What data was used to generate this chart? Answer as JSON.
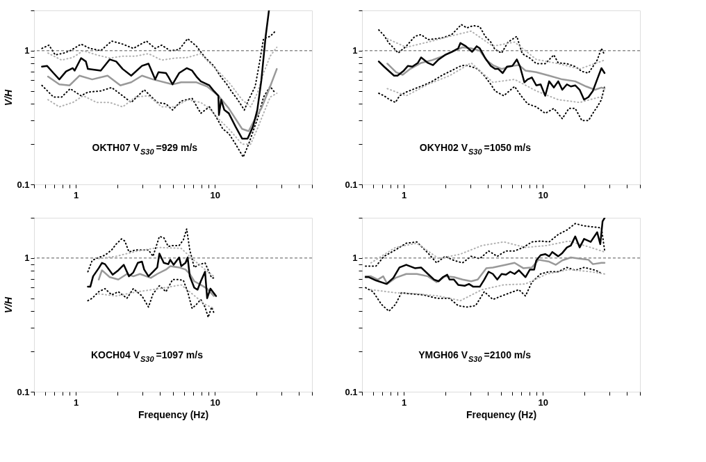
{
  "chart_data": [
    {
      "type": "line",
      "ylabel": "V/H",
      "log": "xy",
      "grid": false,
      "xlim": [
        0.5,
        50
      ],
      "ylim": [
        0.1,
        2
      ],
      "xticks": [
        {
          "value": 0.5,
          "label": null
        },
        {
          "value": 0.6,
          "label": null
        },
        {
          "value": 0.7,
          "label": null
        },
        {
          "value": 0.8,
          "label": null
        },
        {
          "value": 0.9,
          "label": null
        },
        1,
        {
          "value": 2,
          "label": null
        },
        {
          "value": 3,
          "label": null
        },
        {
          "value": 4,
          "label": null
        },
        {
          "value": 5,
          "label": null
        },
        {
          "value": 6,
          "label": null
        },
        {
          "value": 7,
          "label": null
        },
        {
          "value": 8,
          "label": null
        },
        {
          "value": 9,
          "label": null
        },
        10,
        {
          "value": 20,
          "label": null
        },
        {
          "value": 30,
          "label": null
        },
        {
          "value": 40,
          "label": null
        },
        {
          "value": 50,
          "label": null
        }
      ],
      "yticks": [
        0.1,
        {
          "value": 0.2,
          "label": null
        },
        {
          "value": 0.3,
          "label": null
        },
        {
          "value": 0.4,
          "label": null
        },
        {
          "value": 0.5,
          "label": null
        },
        {
          "value": 0.6,
          "label": null
        },
        {
          "value": 0.7,
          "label": null
        },
        {
          "value": 0.8,
          "label": null
        },
        {
          "value": 0.9,
          "label": null
        },
        1,
        {
          "value": 2,
          "label": null
        }
      ],
      "ref_lines": [
        {
          "axis": "y",
          "value": 1,
          "line_style": "dashed",
          "color": "#555555"
        }
      ],
      "annotations": [
        "OKTH07 V$_{S30}$=929 m/s"
      ],
      "series": [
        {
          "color": "#000000",
          "line_style": "dotted",
          "x": [
            0.57,
            0.64,
            0.71,
            0.82,
            0.91,
            1.09,
            1.26,
            1.51,
            1.81,
            2.17,
            2.59,
            3.22,
            3.72,
            4.14,
            4.78,
            5.53,
            6.37,
            7.37,
            8.5,
            9.83,
            10.9,
            12.2,
            13.1,
            14.6,
            16.3,
            17.5,
            19.5,
            20.8,
            22.4,
            25.0,
            27.3
          ],
          "values": [
            1.04,
            1.1,
            0.93,
            0.96,
            1.0,
            1.12,
            1.04,
            1.0,
            1.18,
            1.12,
            1.04,
            1.18,
            1.04,
            1.1,
            1.0,
            1.02,
            1.23,
            1.08,
            0.89,
            0.77,
            0.65,
            0.56,
            0.5,
            0.43,
            0.36,
            0.43,
            0.54,
            0.78,
            1.23,
            1.28,
            1.4
          ]
        },
        {
          "color": "#000000",
          "line_style": "dotted",
          "x": [
            0.57,
            0.69,
            0.79,
            0.91,
            1.09,
            1.22,
            1.51,
            1.81,
            2.17,
            2.5,
            3.1,
            3.85,
            4.45,
            4.96,
            5.72,
            6.86,
            7.92,
            9.13,
            10.2,
            11.4,
            12.6,
            14.1,
            16.0,
            17.5,
            19.1,
            20.5,
            22.4,
            25.0,
            27.3
          ],
          "values": [
            0.55,
            0.45,
            0.45,
            0.52,
            0.46,
            0.49,
            0.5,
            0.53,
            0.46,
            0.41,
            0.51,
            0.41,
            0.4,
            0.36,
            0.42,
            0.44,
            0.34,
            0.38,
            0.32,
            0.26,
            0.24,
            0.2,
            0.16,
            0.2,
            0.26,
            0.32,
            0.45,
            0.54,
            0.48
          ]
        },
        {
          "color": "#b0b0b0",
          "line_style": "dotted",
          "x": [
            0.63,
            0.79,
            0.95,
            1.13,
            1.41,
            1.75,
            2.17,
            2.69,
            3.33,
            4.14,
            5.14,
            6.37,
            7.92,
            9.13,
            10.6,
            12.6,
            15.7,
            18.1,
            20.2,
            22.4,
            25.0,
            27.9
          ],
          "values": [
            0.96,
            0.85,
            0.89,
            1.0,
            0.93,
            0.88,
            0.91,
            0.91,
            0.95,
            0.85,
            0.88,
            0.89,
            0.95,
            0.81,
            0.7,
            0.58,
            0.43,
            0.38,
            0.48,
            0.68,
            0.91,
            1.06
          ]
        },
        {
          "color": "#b0b0b0",
          "line_style": "dotted",
          "x": [
            0.63,
            0.76,
            0.95,
            1.13,
            1.41,
            1.75,
            2.17,
            2.69,
            3.33,
            4.14,
            5.14,
            6.37,
            7.92,
            9.13,
            10.6,
            12.6,
            15.7,
            18.1,
            20.2,
            22.4,
            25.0,
            27.9
          ],
          "values": [
            0.43,
            0.38,
            0.41,
            0.46,
            0.41,
            0.41,
            0.38,
            0.45,
            0.46,
            0.38,
            0.38,
            0.43,
            0.41,
            0.37,
            0.31,
            0.26,
            0.2,
            0.2,
            0.26,
            0.34,
            0.45,
            0.48
          ]
        },
        {
          "color": "#999999",
          "line_style": "solid",
          "x": [
            0.63,
            0.76,
            0.9,
            1.06,
            1.31,
            1.69,
            2.09,
            2.5,
            2.99,
            3.59,
            4.96,
            5.72,
            7.37,
            8.8,
            10.6,
            12.6,
            15.7,
            17.5,
            19.5,
            21.6,
            25.0,
            27.9
          ],
          "values": [
            0.64,
            0.56,
            0.55,
            0.65,
            0.61,
            0.65,
            0.55,
            0.58,
            0.65,
            0.61,
            0.56,
            0.58,
            0.58,
            0.54,
            0.46,
            0.37,
            0.26,
            0.25,
            0.31,
            0.37,
            0.54,
            0.73
          ]
        },
        {
          "color": "#000000",
          "line_style": "solid",
          "x": [
            0.57,
            0.62,
            0.69,
            0.76,
            0.85,
            0.95,
            0.98,
            1.09,
            1.18,
            1.22,
            1.51,
            1.75,
            1.95,
            2.17,
            2.5,
            2.99,
            3.33,
            3.72,
            3.93,
            4.45,
            4.62,
            4.96,
            5.53,
            6.27,
            6.86,
            7.37,
            7.92,
            9.13,
            9.83,
            10.6,
            10.7,
            11.1,
            11.7,
            12.6,
            14.1,
            15.7,
            17.2,
            18.8,
            20.2,
            21.6,
            23.2,
            24.5
          ],
          "values": [
            0.76,
            0.77,
            0.68,
            0.61,
            0.7,
            0.74,
            0.71,
            0.88,
            0.83,
            0.73,
            0.71,
            0.86,
            0.83,
            0.73,
            0.65,
            0.77,
            0.8,
            0.61,
            0.69,
            0.68,
            0.64,
            0.56,
            0.68,
            0.74,
            0.71,
            0.64,
            0.59,
            0.55,
            0.5,
            0.46,
            0.33,
            0.43,
            0.36,
            0.34,
            0.27,
            0.22,
            0.22,
            0.27,
            0.36,
            0.6,
            1.28,
            2.0
          ]
        }
      ]
    },
    {
      "type": "line",
      "log": "xy",
      "grid": false,
      "xlim": [
        0.5,
        50
      ],
      "ylim": [
        0.1,
        2
      ],
      "xticks": [
        {
          "value": 0.5,
          "label": null
        },
        {
          "value": 0.6,
          "label": null
        },
        {
          "value": 0.7,
          "label": null
        },
        {
          "value": 0.8,
          "label": null
        },
        {
          "value": 0.9,
          "label": null
        },
        1,
        {
          "value": 2,
          "label": null
        },
        {
          "value": 3,
          "label": null
        },
        {
          "value": 4,
          "label": null
        },
        {
          "value": 5,
          "label": null
        },
        {
          "value": 6,
          "label": null
        },
        {
          "value": 7,
          "label": null
        },
        {
          "value": 8,
          "label": null
        },
        {
          "value": 9,
          "label": null
        },
        10,
        {
          "value": 20,
          "label": null
        },
        {
          "value": 30,
          "label": null
        },
        {
          "value": 40,
          "label": null
        },
        {
          "value": 50,
          "label": null
        }
      ],
      "yticks": [
        0.1,
        {
          "value": 0.2,
          "label": null
        },
        {
          "value": 0.3,
          "label": null
        },
        {
          "value": 0.4,
          "label": null
        },
        {
          "value": 0.5,
          "label": null
        },
        {
          "value": 0.6,
          "label": null
        },
        {
          "value": 0.7,
          "label": null
        },
        {
          "value": 0.8,
          "label": null
        },
        {
          "value": 0.9,
          "label": null
        },
        1,
        {
          "value": 2,
          "label": null
        }
      ],
      "ref_lines": [
        {
          "axis": "y",
          "value": 1,
          "line_style": "dashed",
          "color": "#555555"
        }
      ],
      "annotations": [
        "OKYH02 V$_{S30}$=1050 m/s"
      ],
      "series": [
        {
          "color": "#000000",
          "line_style": "dotted",
          "x": [
            0.66,
            0.72,
            0.78,
            0.85,
            0.91,
            1.04,
            1.2,
            1.33,
            1.49,
            1.72,
            1.91,
            2.21,
            2.46,
            2.59,
            2.84,
            3.16,
            3.52,
            3.85,
            4.22,
            4.53,
            5.05,
            5.62,
            6.5,
            7.1,
            8.07,
            8.97,
            10.4,
            12.0,
            12.9,
            14.9,
            17.1,
            19.1,
            21.3,
            22.9,
            24.6,
            26.4,
            27.8
          ],
          "values": [
            1.43,
            1.3,
            1.14,
            1.04,
            0.96,
            1.08,
            1.28,
            1.32,
            1.21,
            1.23,
            1.25,
            1.32,
            1.48,
            1.57,
            1.48,
            1.54,
            1.51,
            1.28,
            1.16,
            1.02,
            0.96,
            1.16,
            1.28,
            0.95,
            0.88,
            0.8,
            0.8,
            0.93,
            0.81,
            0.8,
            0.76,
            0.7,
            0.68,
            0.76,
            0.85,
            1.04,
            0.93
          ]
        },
        {
          "color": "#000000",
          "line_style": "dotted",
          "x": [
            0.66,
            0.72,
            0.79,
            0.87,
            0.93,
            1.04,
            1.2,
            1.38,
            1.6,
            1.91,
            2.21,
            2.5,
            2.74,
            3.05,
            3.4,
            3.79,
            4.22,
            4.53,
            5.23,
            6.26,
            6.97,
            7.77,
            8.97,
            10.4,
            12.0,
            13.8,
            15.4,
            17.1,
            19.1,
            21.3,
            22.9,
            24.6,
            26.4,
            27.8
          ],
          "values": [
            0.48,
            0.46,
            0.43,
            0.41,
            0.46,
            0.49,
            0.52,
            0.55,
            0.59,
            0.66,
            0.71,
            0.76,
            0.78,
            0.76,
            0.73,
            0.65,
            0.56,
            0.5,
            0.46,
            0.54,
            0.46,
            0.4,
            0.38,
            0.34,
            0.37,
            0.31,
            0.37,
            0.37,
            0.3,
            0.3,
            0.34,
            0.38,
            0.43,
            0.54
          ]
        },
        {
          "color": "#b0b0b0",
          "line_style": "dotted",
          "x": [
            0.76,
            1.04,
            1.49,
            2.13,
            3.05,
            4.37,
            6.26,
            8.97,
            12.9,
            18.4,
            27.8
          ],
          "values": [
            1.23,
            1.06,
            1.16,
            1.28,
            1.4,
            1.08,
            1.16,
            0.86,
            0.8,
            0.73,
            0.85
          ]
        },
        {
          "color": "#b0b0b0",
          "line_style": "dotted",
          "x": [
            0.76,
            1.04,
            1.49,
            2.13,
            3.05,
            4.37,
            6.26,
            8.97,
            12.9,
            18.4,
            27.8
          ],
          "values": [
            0.52,
            0.46,
            0.56,
            0.65,
            0.81,
            0.58,
            0.61,
            0.5,
            0.43,
            0.41,
            0.46
          ]
        },
        {
          "color": "#999999",
          "line_style": "solid",
          "x": [
            0.76,
            0.88,
            0.98,
            1.11,
            1.33,
            1.6,
            1.91,
            2.21,
            2.64,
            3.05,
            3.52,
            3.92,
            4.37,
            5.05,
            6.04,
            6.72,
            7.5,
            8.97,
            11.1,
            13.8,
            17.1,
            20.5,
            23.7,
            26.4,
            27.8
          ],
          "values": [
            0.8,
            0.69,
            0.66,
            0.73,
            0.81,
            0.85,
            0.91,
            0.98,
            1.06,
            1.04,
            1.0,
            0.85,
            0.78,
            0.73,
            0.77,
            0.78,
            0.71,
            0.69,
            0.65,
            0.61,
            0.59,
            0.54,
            0.51,
            0.53,
            0.52
          ]
        },
        {
          "color": "#000000",
          "line_style": "solid",
          "x": [
            0.66,
            0.72,
            0.85,
            0.9,
            1.0,
            1.07,
            1.15,
            1.26,
            1.33,
            1.49,
            1.62,
            1.78,
            1.98,
            2.21,
            2.46,
            2.55,
            2.79,
            3.1,
            3.34,
            3.52,
            3.85,
            4.22,
            4.53,
            4.78,
            5.14,
            5.52,
            6.04,
            6.5,
            6.85,
            7.37,
            7.77,
            8.34,
            8.97,
            9.64,
            10.4,
            11.1,
            12.0,
            12.9,
            13.8,
            14.9,
            15.9,
            17.1,
            18.4,
            19.8,
            21.3,
            22.9,
            24.6,
            26.4,
            27.8
          ],
          "values": [
            0.83,
            0.76,
            0.65,
            0.65,
            0.71,
            0.77,
            0.76,
            0.81,
            0.89,
            0.81,
            0.78,
            0.86,
            0.93,
            0.98,
            1.04,
            1.14,
            1.08,
            0.98,
            1.08,
            1.04,
            0.88,
            0.77,
            0.73,
            0.73,
            0.68,
            0.76,
            0.77,
            0.86,
            0.76,
            0.58,
            0.61,
            0.63,
            0.55,
            0.56,
            0.46,
            0.59,
            0.53,
            0.59,
            0.51,
            0.56,
            0.54,
            0.55,
            0.51,
            0.43,
            0.45,
            0.5,
            0.61,
            0.74,
            0.68
          ]
        }
      ]
    },
    {
      "type": "line",
      "xlabel": "Frequency (Hz)",
      "ylabel": "V/H",
      "log": "xy",
      "grid": false,
      "xlim": [
        0.5,
        50
      ],
      "ylim": [
        0.1,
        2
      ],
      "xticks": [
        {
          "value": 0.5,
          "label": null
        },
        {
          "value": 0.6,
          "label": null
        },
        {
          "value": 0.7,
          "label": null
        },
        {
          "value": 0.8,
          "label": null
        },
        {
          "value": 0.9,
          "label": null
        },
        1,
        {
          "value": 2,
          "label": null
        },
        {
          "value": 3,
          "label": null
        },
        {
          "value": 4,
          "label": null
        },
        {
          "value": 5,
          "label": null
        },
        {
          "value": 6,
          "label": null
        },
        {
          "value": 7,
          "label": null
        },
        {
          "value": 8,
          "label": null
        },
        {
          "value": 9,
          "label": null
        },
        10,
        {
          "value": 20,
          "label": null
        },
        {
          "value": 30,
          "label": null
        },
        {
          "value": 40,
          "label": null
        },
        {
          "value": 50,
          "label": null
        }
      ],
      "yticks": [
        0.1,
        {
          "value": 0.2,
          "label": null
        },
        {
          "value": 0.3,
          "label": null
        },
        {
          "value": 0.4,
          "label": null
        },
        {
          "value": 0.5,
          "label": null
        },
        {
          "value": 0.6,
          "label": null
        },
        {
          "value": 0.7,
          "label": null
        },
        {
          "value": 0.8,
          "label": null
        },
        {
          "value": 0.9,
          "label": null
        },
        1,
        {
          "value": 2,
          "label": null
        }
      ],
      "ref_lines": [
        {
          "axis": "y",
          "value": 1,
          "line_style": "dashed",
          "color": "#555555"
        }
      ],
      "annotations": [
        "KOCH04 V$_{S30}$=1097 m/s"
      ],
      "series": [
        {
          "color": "#000000",
          "line_style": "dotted",
          "x": [
            1.22,
            1.31,
            1.46,
            1.62,
            1.81,
            1.95,
            2.13,
            2.25,
            2.41,
            2.69,
            2.99,
            3.33,
            3.59,
            3.99,
            4.29,
            4.62,
            4.96,
            5.53,
            5.94,
            6.27,
            6.6,
            7.11,
            7.64,
            8.5,
            9.48,
            9.83
          ],
          "values": [
            0.79,
            0.96,
            1.01,
            1.05,
            1.15,
            1.27,
            1.39,
            1.34,
            1.11,
            1.15,
            1.15,
            1.15,
            1.03,
            1.45,
            1.42,
            1.22,
            1.24,
            1.24,
            1.37,
            1.65,
            1.15,
            0.85,
            0.89,
            0.92,
            0.71,
            0.71
          ]
        },
        {
          "color": "#000000",
          "line_style": "dotted",
          "x": [
            1.22,
            1.31,
            1.46,
            1.62,
            1.81,
            2.02,
            2.33,
            2.59,
            2.99,
            3.33,
            3.59,
            3.99,
            4.45,
            4.96,
            5.53,
            5.94,
            6.37,
            6.86,
            7.37,
            7.92,
            8.5,
            8.95,
            9.48,
            9.83
          ],
          "values": [
            0.48,
            0.5,
            0.56,
            0.59,
            0.53,
            0.56,
            0.5,
            0.59,
            0.52,
            0.43,
            0.54,
            0.62,
            0.56,
            0.69,
            0.69,
            0.68,
            0.56,
            0.42,
            0.45,
            0.49,
            0.43,
            0.36,
            0.43,
            0.39
          ]
        },
        {
          "color": "#b0b0b0",
          "line_style": "dotted",
          "x": [
            1.46,
            1.95,
            2.79,
            3.99,
            5.73,
            6.86,
            8.5,
            9.83
          ],
          "values": [
            0.99,
            1.03,
            1.13,
            1.2,
            1.18,
            0.99,
            0.82,
            0.73
          ]
        },
        {
          "color": "#b0b0b0",
          "line_style": "dotted",
          "x": [
            1.46,
            1.95,
            2.79,
            3.99,
            5.73,
            6.86,
            8.5,
            9.83
          ],
          "values": [
            0.54,
            0.52,
            0.56,
            0.59,
            0.63,
            0.54,
            0.45,
            0.42
          ]
        },
        {
          "color": "#999999",
          "line_style": "solid",
          "x": [
            1.46,
            1.54,
            1.75,
            2.02,
            2.33,
            2.59,
            2.89,
            3.46,
            3.85,
            4.45,
            4.78,
            5.53,
            6.15,
            6.6,
            7.11,
            7.92,
            8.8,
            9.83
          ],
          "values": [
            0.69,
            0.81,
            0.72,
            0.69,
            0.76,
            0.73,
            0.76,
            0.71,
            0.76,
            0.82,
            0.87,
            0.85,
            0.82,
            0.76,
            0.67,
            0.63,
            0.59,
            0.52
          ]
        },
        {
          "color": "#000000",
          "line_style": "solid",
          "x": [
            1.22,
            1.27,
            1.33,
            1.46,
            1.54,
            1.62,
            1.84,
            2.02,
            2.21,
            2.41,
            2.59,
            2.79,
            2.99,
            3.1,
            3.33,
            3.59,
            3.85,
            3.99,
            4.29,
            4.62,
            4.78,
            5.05,
            5.53,
            5.73,
            6.15,
            6.37,
            6.6,
            7.11,
            7.51,
            7.92,
            8.5,
            8.8,
            9.29,
            10.2
          ],
          "values": [
            0.61,
            0.61,
            0.73,
            0.84,
            0.92,
            0.9,
            0.75,
            0.81,
            0.89,
            0.73,
            0.78,
            0.92,
            0.94,
            0.82,
            0.73,
            0.79,
            0.85,
            1.08,
            0.92,
            0.9,
            0.97,
            0.89,
            1.01,
            0.87,
            0.92,
            1.01,
            0.73,
            0.6,
            0.58,
            0.67,
            0.79,
            0.5,
            0.59,
            0.52
          ]
        }
      ]
    },
    {
      "type": "line",
      "xlabel": "Frequency (Hz)",
      "log": "xy",
      "grid": false,
      "xlim": [
        0.5,
        50
      ],
      "ylim": [
        0.1,
        2
      ],
      "xticks": [
        {
          "value": 0.5,
          "label": null
        },
        {
          "value": 0.6,
          "label": null
        },
        {
          "value": 0.7,
          "label": null
        },
        {
          "value": 0.8,
          "label": null
        },
        {
          "value": 0.9,
          "label": null
        },
        1,
        {
          "value": 2,
          "label": null
        },
        {
          "value": 3,
          "label": null
        },
        {
          "value": 4,
          "label": null
        },
        {
          "value": 5,
          "label": null
        },
        {
          "value": 6,
          "label": null
        },
        {
          "value": 7,
          "label": null
        },
        {
          "value": 8,
          "label": null
        },
        {
          "value": 9,
          "label": null
        },
        10,
        {
          "value": 20,
          "label": null
        },
        {
          "value": 30,
          "label": null
        },
        {
          "value": 40,
          "label": null
        },
        {
          "value": 50,
          "label": null
        }
      ],
      "yticks": [
        0.1,
        {
          "value": 0.2,
          "label": null
        },
        {
          "value": 0.3,
          "label": null
        },
        {
          "value": 0.4,
          "label": null
        },
        {
          "value": 0.5,
          "label": null
        },
        {
          "value": 0.6,
          "label": null
        },
        {
          "value": 0.7,
          "label": null
        },
        {
          "value": 0.8,
          "label": null
        },
        {
          "value": 0.9,
          "label": null
        },
        1,
        {
          "value": 2,
          "label": null
        }
      ],
      "ref_lines": [
        {
          "axis": "y",
          "value": 1,
          "line_style": "dashed",
          "color": "#555555"
        }
      ],
      "annotations": [
        "YMGH06 V$_{S30}$=2100 m/s"
      ],
      "series": [
        {
          "color": "#000000",
          "line_style": "dotted",
          "x": [
            0.53,
            0.63,
            0.72,
            0.87,
            1.04,
            1.24,
            1.49,
            1.72,
            1.98,
            2.29,
            2.64,
            3.05,
            3.52,
            4.07,
            4.7,
            5.43,
            6.26,
            7.23,
            8.34,
            9.64,
            11.1,
            12.9,
            14.9,
            17.1,
            19.8,
            22.9,
            26.4,
            27.8
          ],
          "values": [
            0.87,
            0.87,
            1.03,
            1.15,
            1.29,
            1.32,
            1.09,
            0.92,
            1.03,
            0.96,
            0.92,
            1.03,
            0.99,
            1.13,
            1.03,
            1.13,
            1.13,
            1.2,
            1.32,
            1.34,
            1.32,
            1.5,
            1.62,
            1.81,
            1.74,
            1.71,
            1.68,
            1.15
          ]
        },
        {
          "color": "#000000",
          "line_style": "dotted",
          "x": [
            0.53,
            0.6,
            0.69,
            0.78,
            0.87,
            0.96,
            1.11,
            1.38,
            1.72,
            2.13,
            2.46,
            2.84,
            3.28,
            3.79,
            4.37,
            5.05,
            5.83,
            6.72,
            7.5,
            8.34,
            9.64,
            11.1,
            12.9,
            14.9,
            17.1,
            19.8,
            22.9,
            25.4,
            26.4
          ],
          "values": [
            0.6,
            0.56,
            0.45,
            0.4,
            0.45,
            0.55,
            0.54,
            0.53,
            0.5,
            0.5,
            0.44,
            0.43,
            0.44,
            0.56,
            0.49,
            0.52,
            0.55,
            0.58,
            0.52,
            0.66,
            0.76,
            0.79,
            0.79,
            0.85,
            0.81,
            0.85,
            0.82,
            0.79,
            0.76
          ]
        },
        {
          "color": "#b0b0b0",
          "line_style": "dotted",
          "x": [
            0.58,
            0.87,
            1.24,
            1.78,
            2.55,
            3.65,
            5.23,
            7.5,
            10.7,
            15.4,
            22.1,
            27.8
          ],
          "values": [
            0.92,
            1.2,
            1.29,
            0.99,
            1.07,
            1.24,
            1.32,
            1.2,
            1.24,
            1.34,
            1.2,
            1.11
          ]
        },
        {
          "color": "#b0b0b0",
          "line_style": "dotted",
          "x": [
            0.58,
            0.87,
            1.24,
            1.78,
            2.55,
            3.65,
            5.23,
            7.5,
            10.7,
            15.4,
            22.1,
            27.8
          ],
          "values": [
            0.58,
            0.55,
            0.54,
            0.52,
            0.48,
            0.58,
            0.63,
            0.64,
            0.76,
            0.82,
            0.79,
            0.76
          ]
        },
        {
          "color": "#999999",
          "line_style": "solid",
          "x": [
            0.53,
            0.58,
            0.65,
            0.71,
            0.76,
            0.87,
            1.04,
            1.24,
            1.49,
            1.72,
            1.98,
            2.29,
            2.64,
            3.05,
            3.4,
            3.92,
            4.37,
            5.43,
            6.26,
            7.23,
            8.34,
            9.3,
            11.1,
            12.4,
            13.8,
            15.9,
            18.4,
            21.3,
            22.9,
            26.4,
            27.8
          ],
          "values": [
            0.73,
            0.73,
            0.69,
            0.73,
            0.64,
            0.71,
            0.76,
            0.76,
            0.73,
            0.66,
            0.73,
            0.72,
            0.69,
            0.67,
            0.69,
            0.84,
            0.85,
            0.89,
            0.92,
            0.84,
            0.85,
            0.97,
            0.94,
            0.89,
            0.96,
            1.01,
            0.99,
            0.97,
            0.9,
            0.92,
            0.92
          ]
        },
        {
          "color": "#000000",
          "line_style": "solid",
          "x": [
            0.53,
            0.56,
            0.63,
            0.75,
            0.84,
            0.93,
            1.04,
            1.2,
            1.33,
            1.49,
            1.65,
            1.78,
            1.91,
            2.05,
            2.13,
            2.29,
            2.46,
            2.74,
            2.94,
            3.16,
            3.52,
            3.79,
            4.07,
            4.37,
            4.7,
            5.05,
            5.43,
            5.83,
            6.26,
            6.72,
            7.5,
            8.07,
            8.66,
            8.97,
            9.64,
            10.4,
            11.1,
            11.7,
            12.9,
            13.8,
            14.9,
            15.9,
            17.1,
            18.4,
            19.8,
            22.1,
            24.6,
            25.9,
            26.9,
            27.8
          ],
          "values": [
            0.72,
            0.72,
            0.68,
            0.64,
            0.71,
            0.85,
            0.89,
            0.84,
            0.85,
            0.76,
            0.69,
            0.67,
            0.72,
            0.75,
            0.69,
            0.69,
            0.63,
            0.62,
            0.64,
            0.61,
            0.61,
            0.69,
            0.79,
            0.76,
            0.69,
            0.76,
            0.75,
            0.79,
            0.76,
            0.81,
            0.72,
            0.82,
            0.82,
            0.96,
            1.05,
            1.07,
            1.03,
            1.11,
            1.03,
            1.09,
            1.2,
            1.24,
            1.45,
            1.2,
            1.39,
            1.32,
            1.56,
            1.27,
            1.88,
            1.99
          ]
        }
      ]
    }
  ]
}
